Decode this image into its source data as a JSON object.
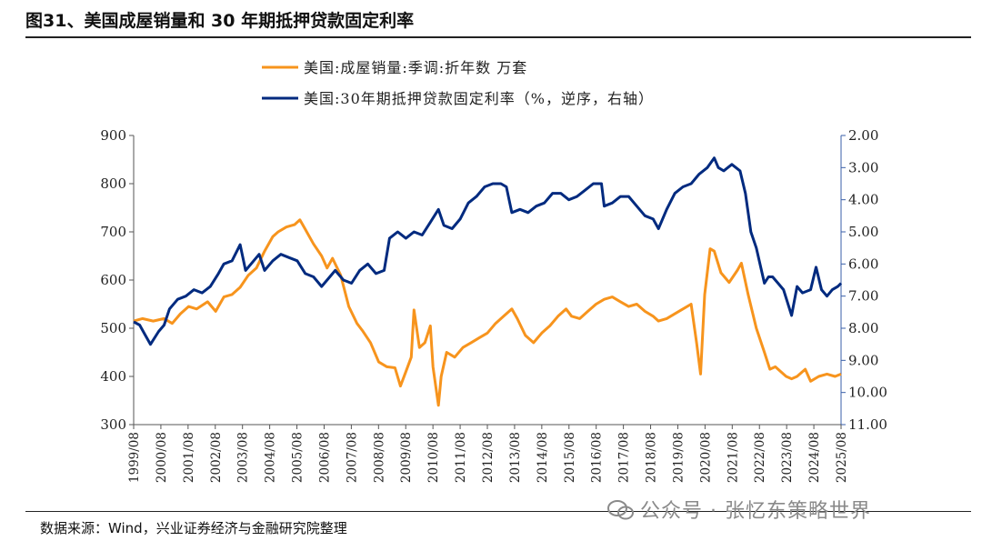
{
  "header": {
    "title": "图31、美国成屋销量和 30 年期抵押贷款固定利率"
  },
  "footer": {
    "source": "数据来源：Wind，兴业证券经济与金融研究院整理",
    "watermark": "公众号 · 张忆东策略世界"
  },
  "colors": {
    "sales": "#F7941D",
    "rate": "#002A7F",
    "axis": "#555555",
    "right_axis": "#3A5FA8"
  },
  "chart_data": {
    "type": "line",
    "title": "",
    "legend_position": "top-center",
    "left_axis": {
      "label": "",
      "ylim": [
        300,
        900
      ],
      "ticks": [
        "300",
        "400",
        "500",
        "600",
        "700",
        "800",
        "900"
      ]
    },
    "right_axis": {
      "label": "",
      "inverted": true,
      "ylim": [
        2.0,
        11.0
      ],
      "ticks": [
        "2.00",
        "3.00",
        "4.00",
        "5.00",
        "6.00",
        "7.00",
        "8.00",
        "9.00",
        "10.00",
        "11.00"
      ]
    },
    "x_ticks": [
      "1999/08",
      "2000/08",
      "2001/08",
      "2002/08",
      "2003/08",
      "2004/08",
      "2005/08",
      "2006/08",
      "2007/08",
      "2008/08",
      "2009/08",
      "2010/08",
      "2011/08",
      "2012/08",
      "2013/08",
      "2014/08",
      "2015/08",
      "2016/08",
      "2017/08",
      "2018/08",
      "2019/08",
      "2020/08",
      "2021/08",
      "2022/08",
      "2023/08",
      "2024/08",
      "2025/08"
    ],
    "series": [
      {
        "name": "美国:成屋销量:季调:折年数 万套",
        "axis": "left",
        "points": [
          [
            1999.58,
            515
          ],
          [
            1999.9,
            520
          ],
          [
            2000.3,
            515
          ],
          [
            2000.7,
            520
          ],
          [
            2001.0,
            510
          ],
          [
            2001.3,
            530
          ],
          [
            2001.6,
            545
          ],
          [
            2001.9,
            540
          ],
          [
            2002.3,
            555
          ],
          [
            2002.6,
            535
          ],
          [
            2002.9,
            565
          ],
          [
            2003.2,
            570
          ],
          [
            2003.5,
            585
          ],
          [
            2003.8,
            610
          ],
          [
            2004.1,
            625
          ],
          [
            2004.4,
            660
          ],
          [
            2004.7,
            690
          ],
          [
            2004.9,
            700
          ],
          [
            2005.2,
            710
          ],
          [
            2005.5,
            715
          ],
          [
            2005.7,
            725
          ],
          [
            2005.9,
            705
          ],
          [
            2006.2,
            675
          ],
          [
            2006.5,
            650
          ],
          [
            2006.7,
            625
          ],
          [
            2006.9,
            645
          ],
          [
            2007.2,
            610
          ],
          [
            2007.5,
            545
          ],
          [
            2007.8,
            510
          ],
          [
            2008.0,
            495
          ],
          [
            2008.3,
            470
          ],
          [
            2008.6,
            430
          ],
          [
            2008.9,
            420
          ],
          [
            2009.2,
            418
          ],
          [
            2009.4,
            380
          ],
          [
            2009.6,
            410
          ],
          [
            2009.8,
            440
          ],
          [
            2009.9,
            538
          ],
          [
            2010.1,
            460
          ],
          [
            2010.3,
            470
          ],
          [
            2010.5,
            505
          ],
          [
            2010.6,
            420
          ],
          [
            2010.8,
            340
          ],
          [
            2010.9,
            400
          ],
          [
            2011.1,
            450
          ],
          [
            2011.4,
            440
          ],
          [
            2011.7,
            460
          ],
          [
            2012.0,
            470
          ],
          [
            2012.3,
            480
          ],
          [
            2012.6,
            490
          ],
          [
            2012.9,
            510
          ],
          [
            2013.2,
            525
          ],
          [
            2013.5,
            540
          ],
          [
            2013.7,
            520
          ],
          [
            2014.0,
            485
          ],
          [
            2014.3,
            470
          ],
          [
            2014.6,
            490
          ],
          [
            2014.9,
            505
          ],
          [
            2015.2,
            525
          ],
          [
            2015.5,
            540
          ],
          [
            2015.7,
            525
          ],
          [
            2016.0,
            520
          ],
          [
            2016.3,
            535
          ],
          [
            2016.6,
            550
          ],
          [
            2016.9,
            560
          ],
          [
            2017.2,
            565
          ],
          [
            2017.5,
            555
          ],
          [
            2017.8,
            545
          ],
          [
            2018.1,
            550
          ],
          [
            2018.4,
            535
          ],
          [
            2018.7,
            525
          ],
          [
            2018.9,
            515
          ],
          [
            2019.2,
            520
          ],
          [
            2019.5,
            530
          ],
          [
            2019.8,
            540
          ],
          [
            2020.1,
            550
          ],
          [
            2020.3,
            470
          ],
          [
            2020.45,
            405
          ],
          [
            2020.6,
            570
          ],
          [
            2020.8,
            665
          ],
          [
            2020.95,
            660
          ],
          [
            2021.2,
            615
          ],
          [
            2021.5,
            595
          ],
          [
            2021.8,
            620
          ],
          [
            2021.95,
            635
          ],
          [
            2022.2,
            570
          ],
          [
            2022.5,
            500
          ],
          [
            2022.8,
            450
          ],
          [
            2023.0,
            415
          ],
          [
            2023.2,
            420
          ],
          [
            2023.4,
            410
          ],
          [
            2023.6,
            400
          ],
          [
            2023.8,
            395
          ],
          [
            2024.0,
            400
          ],
          [
            2024.3,
            415
          ],
          [
            2024.5,
            390
          ],
          [
            2024.8,
            400
          ],
          [
            2025.1,
            405
          ],
          [
            2025.4,
            400
          ],
          [
            2025.62,
            405
          ]
        ]
      },
      {
        "name": "美国:30年期抵押贷款固定利率（%，逆序，右轴）",
        "axis": "right",
        "points": [
          [
            1999.58,
            7.8
          ],
          [
            1999.8,
            7.9
          ],
          [
            2000.0,
            8.2
          ],
          [
            2000.2,
            8.5
          ],
          [
            2000.5,
            8.1
          ],
          [
            2000.7,
            7.9
          ],
          [
            2000.9,
            7.4
          ],
          [
            2001.2,
            7.1
          ],
          [
            2001.5,
            7.0
          ],
          [
            2001.8,
            6.8
          ],
          [
            2002.1,
            6.9
          ],
          [
            2002.4,
            6.7
          ],
          [
            2002.7,
            6.3
          ],
          [
            2002.9,
            6.0
          ],
          [
            2003.2,
            5.9
          ],
          [
            2003.5,
            5.4
          ],
          [
            2003.7,
            6.2
          ],
          [
            2003.9,
            6.0
          ],
          [
            2004.2,
            5.7
          ],
          [
            2004.4,
            6.2
          ],
          [
            2004.7,
            5.9
          ],
          [
            2005.0,
            5.7
          ],
          [
            2005.3,
            5.8
          ],
          [
            2005.6,
            5.9
          ],
          [
            2005.9,
            6.3
          ],
          [
            2006.2,
            6.4
          ],
          [
            2006.5,
            6.7
          ],
          [
            2006.8,
            6.4
          ],
          [
            2007.0,
            6.2
          ],
          [
            2007.3,
            6.5
          ],
          [
            2007.6,
            6.6
          ],
          [
            2007.9,
            6.2
          ],
          [
            2008.2,
            6.0
          ],
          [
            2008.5,
            6.3
          ],
          [
            2008.8,
            6.2
          ],
          [
            2009.0,
            5.2
          ],
          [
            2009.3,
            5.0
          ],
          [
            2009.6,
            5.2
          ],
          [
            2009.9,
            5.0
          ],
          [
            2010.2,
            5.1
          ],
          [
            2010.5,
            4.7
          ],
          [
            2010.8,
            4.3
          ],
          [
            2011.0,
            4.8
          ],
          [
            2011.3,
            4.9
          ],
          [
            2011.6,
            4.6
          ],
          [
            2011.9,
            4.1
          ],
          [
            2012.2,
            3.9
          ],
          [
            2012.5,
            3.6
          ],
          [
            2012.8,
            3.5
          ],
          [
            2013.1,
            3.5
          ],
          [
            2013.3,
            3.6
          ],
          [
            2013.5,
            4.4
          ],
          [
            2013.8,
            4.3
          ],
          [
            2014.1,
            4.4
          ],
          [
            2014.4,
            4.2
          ],
          [
            2014.7,
            4.1
          ],
          [
            2015.0,
            3.8
          ],
          [
            2015.3,
            3.8
          ],
          [
            2015.6,
            4.0
          ],
          [
            2015.9,
            3.9
          ],
          [
            2016.2,
            3.7
          ],
          [
            2016.5,
            3.5
          ],
          [
            2016.8,
            3.5
          ],
          [
            2016.9,
            4.2
          ],
          [
            2017.2,
            4.1
          ],
          [
            2017.5,
            3.9
          ],
          [
            2017.8,
            3.9
          ],
          [
            2018.1,
            4.2
          ],
          [
            2018.4,
            4.5
          ],
          [
            2018.7,
            4.6
          ],
          [
            2018.9,
            4.9
          ],
          [
            2019.2,
            4.3
          ],
          [
            2019.5,
            3.8
          ],
          [
            2019.8,
            3.6
          ],
          [
            2020.1,
            3.5
          ],
          [
            2020.4,
            3.2
          ],
          [
            2020.7,
            3.0
          ],
          [
            2020.95,
            2.7
          ],
          [
            2021.1,
            3.0
          ],
          [
            2021.3,
            3.1
          ],
          [
            2021.6,
            2.9
          ],
          [
            2021.9,
            3.1
          ],
          [
            2022.1,
            3.8
          ],
          [
            2022.3,
            5.0
          ],
          [
            2022.5,
            5.5
          ],
          [
            2022.8,
            6.6
          ],
          [
            2022.95,
            6.4
          ],
          [
            2023.1,
            6.4
          ],
          [
            2023.3,
            6.6
          ],
          [
            2023.5,
            6.8
          ],
          [
            2023.8,
            7.6
          ],
          [
            2024.0,
            6.7
          ],
          [
            2024.2,
            6.9
          ],
          [
            2024.5,
            6.8
          ],
          [
            2024.7,
            6.1
          ],
          [
            2024.9,
            6.8
          ],
          [
            2025.1,
            7.0
          ],
          [
            2025.3,
            6.8
          ],
          [
            2025.5,
            6.7
          ],
          [
            2025.62,
            6.6
          ]
        ]
      }
    ]
  }
}
